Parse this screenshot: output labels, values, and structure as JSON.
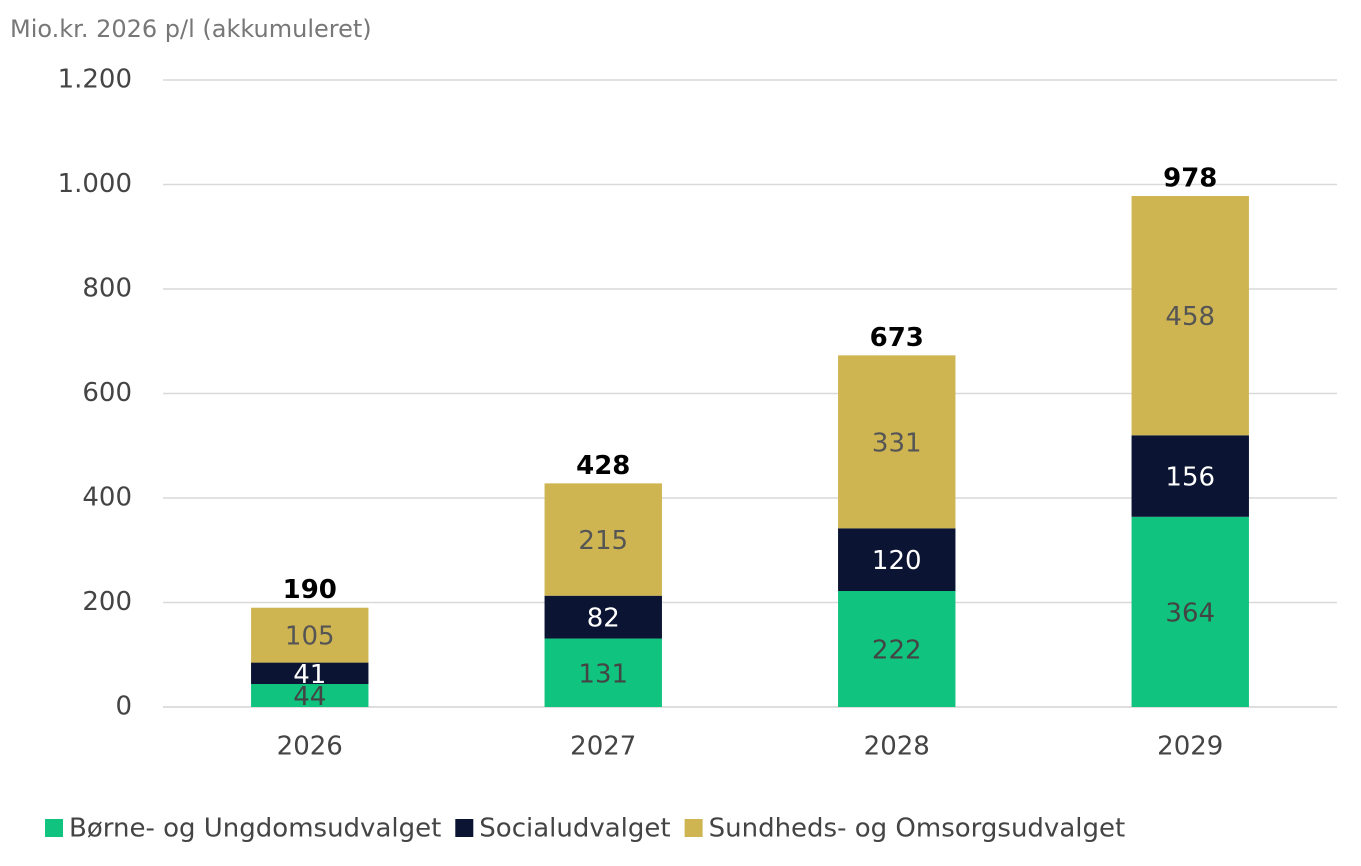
{
  "chart_data": {
    "type": "stacked_bar",
    "y_axis_label": "Mio.kr. 2026 p/l (akkumuleret)",
    "categories": [
      "2026",
      "2027",
      "2028",
      "2029"
    ],
    "series": [
      {
        "name": "Børne- og Ungdomsudvalget",
        "color": "#10c47f",
        "values": [
          44,
          131,
          222,
          364
        ]
      },
      {
        "name": "Socialudvalget",
        "color": "#0b1533",
        "values": [
          41,
          82,
          120,
          156
        ]
      },
      {
        "name": "Sundheds- og Omsorgsudvalget",
        "color": "#cfb552",
        "values": [
          105,
          215,
          331,
          458
        ]
      }
    ],
    "totals": [
      190,
      428,
      673,
      978
    ],
    "ylim": [
      0,
      1200
    ],
    "yticks": [
      0,
      200,
      400,
      600,
      800,
      {
        "value": 1000,
        "label": "1.000"
      },
      {
        "value": 1200,
        "label": "1.200"
      }
    ],
    "grid": true,
    "legend": "bottom"
  }
}
